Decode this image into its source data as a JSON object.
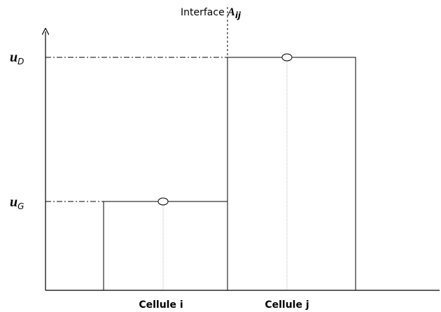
{
  "interface": {
    "text": "Interface",
    "symbol": "A",
    "subscript": "ij"
  },
  "levels": [
    {
      "symbol": "u",
      "subscript": "D"
    },
    {
      "symbol": "u",
      "subscript": "G"
    }
  ],
  "cells": [
    {
      "label": "Cellule i"
    },
    {
      "label": "Cellule j"
    }
  ]
}
